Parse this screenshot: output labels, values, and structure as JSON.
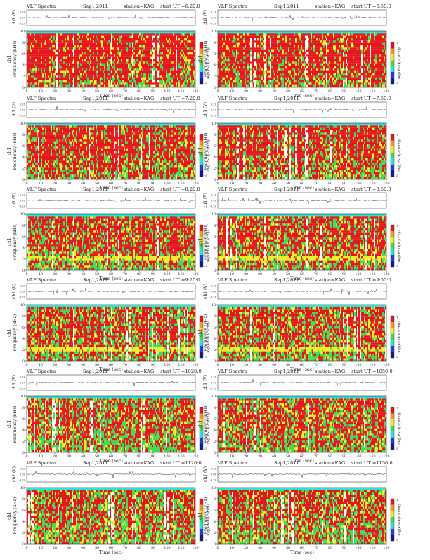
{
  "page": {
    "shared_labels": {
      "title_left": "VLF Spectra",
      "date": "Sep1,2011",
      "station": "station=KAG",
      "start_prefix": "start  UT =",
      "waveform_ylabel": "ch1 (V)",
      "waveform_ticks": [
        "0.20",
        "0.00",
        "-0.20"
      ],
      "spec_ylabel_ch": "ch1",
      "spec_ylabel": "Frequency (kHz)",
      "spec_yticks": [
        "0",
        "2",
        "4",
        "6",
        "8",
        "10"
      ],
      "xlabel": "Time (sec)",
      "xticks": [
        "0",
        "10",
        "20",
        "30",
        "40",
        "50",
        "60",
        "70",
        "80",
        "90",
        "100",
        "110",
        "120"
      ],
      "colorbar_label": "log(PSD(V²/Hz))",
      "colorbar_ticks": [
        "-1",
        "-5"
      ]
    },
    "colors": {
      "red": "#e8141e",
      "yellow": "#f2ee25",
      "green": "#3fdc5a",
      "cyan": "#26e6d6",
      "blue": "#1d3fe0",
      "navy": "#111a8a",
      "waveform": "#333333"
    }
  },
  "chart_data": [
    {
      "type": "heatmap",
      "start_ut": "6:20:0",
      "xlim": [
        0,
        120
      ],
      "ylim": [
        0,
        10
      ],
      "cyan_top_khz": [
        9.6,
        10.2
      ],
      "density": 0.88,
      "noise_band": false
    },
    {
      "type": "heatmap",
      "start_ut": "6:50:0",
      "xlim": [
        0,
        120
      ],
      "ylim": [
        0,
        10
      ],
      "cyan_top_khz": [
        9.6,
        10.2
      ],
      "density": 0.85,
      "noise_band": false
    },
    {
      "type": "heatmap",
      "start_ut": "7:20:0",
      "xlim": [
        0,
        120
      ],
      "ylim": [
        0,
        10
      ],
      "cyan_top_khz": [
        9.6,
        10.2
      ],
      "density": 0.75,
      "noise_band": false
    },
    {
      "type": "heatmap",
      "start_ut": "7:50:0",
      "xlim": [
        0,
        120
      ],
      "ylim": [
        0,
        10
      ],
      "cyan_top_khz": [
        9.6,
        10.2
      ],
      "density": 0.72,
      "noise_band": false
    },
    {
      "type": "heatmap",
      "start_ut": "8:20:0",
      "xlim": [
        0,
        120
      ],
      "ylim": [
        0,
        10
      ],
      "cyan_top_khz": [
        9.6,
        10.2
      ],
      "density": 0.68,
      "noise_band": true
    },
    {
      "type": "heatmap",
      "start_ut": "8:50:0",
      "xlim": [
        0,
        120
      ],
      "ylim": [
        0,
        10
      ],
      "cyan_top_khz": [
        9.6,
        10.2
      ],
      "density": 0.68,
      "noise_band": true
    },
    {
      "type": "heatmap",
      "start_ut": "9:20:0",
      "xlim": [
        0,
        120
      ],
      "ylim": [
        0,
        10
      ],
      "cyan_top_khz": [
        9.6,
        10.2
      ],
      "density": 0.62,
      "noise_band": true
    },
    {
      "type": "heatmap",
      "start_ut": "9:50:0",
      "xlim": [
        0,
        120
      ],
      "ylim": [
        0,
        10
      ],
      "cyan_top_khz": [
        9.6,
        10.2
      ],
      "density": 0.62,
      "noise_band": true
    },
    {
      "type": "heatmap",
      "start_ut": "1020:0",
      "xlim": [
        0,
        120
      ],
      "ylim": [
        0,
        10
      ],
      "cyan_top_khz": [
        9.6,
        10.2
      ],
      "density": 0.58,
      "noise_band": false
    },
    {
      "type": "heatmap",
      "start_ut": "1050:0",
      "xlim": [
        0,
        120
      ],
      "ylim": [
        0,
        10
      ],
      "cyan_top_khz": [
        9.6,
        10.2
      ],
      "density": 0.6,
      "noise_band": false
    },
    {
      "type": "heatmap",
      "start_ut": "1120:0",
      "xlim": [
        0,
        120
      ],
      "ylim": [
        0,
        10
      ],
      "cyan_top_khz": [
        9.6,
        10.2
      ],
      "density": 0.58,
      "noise_band": false
    },
    {
      "type": "heatmap",
      "start_ut": "1150:0",
      "xlim": [
        0,
        120
      ],
      "ylim": [
        0,
        10
      ],
      "cyan_top_khz": [
        9.6,
        10.2
      ],
      "density": 0.6,
      "noise_band": false
    }
  ]
}
